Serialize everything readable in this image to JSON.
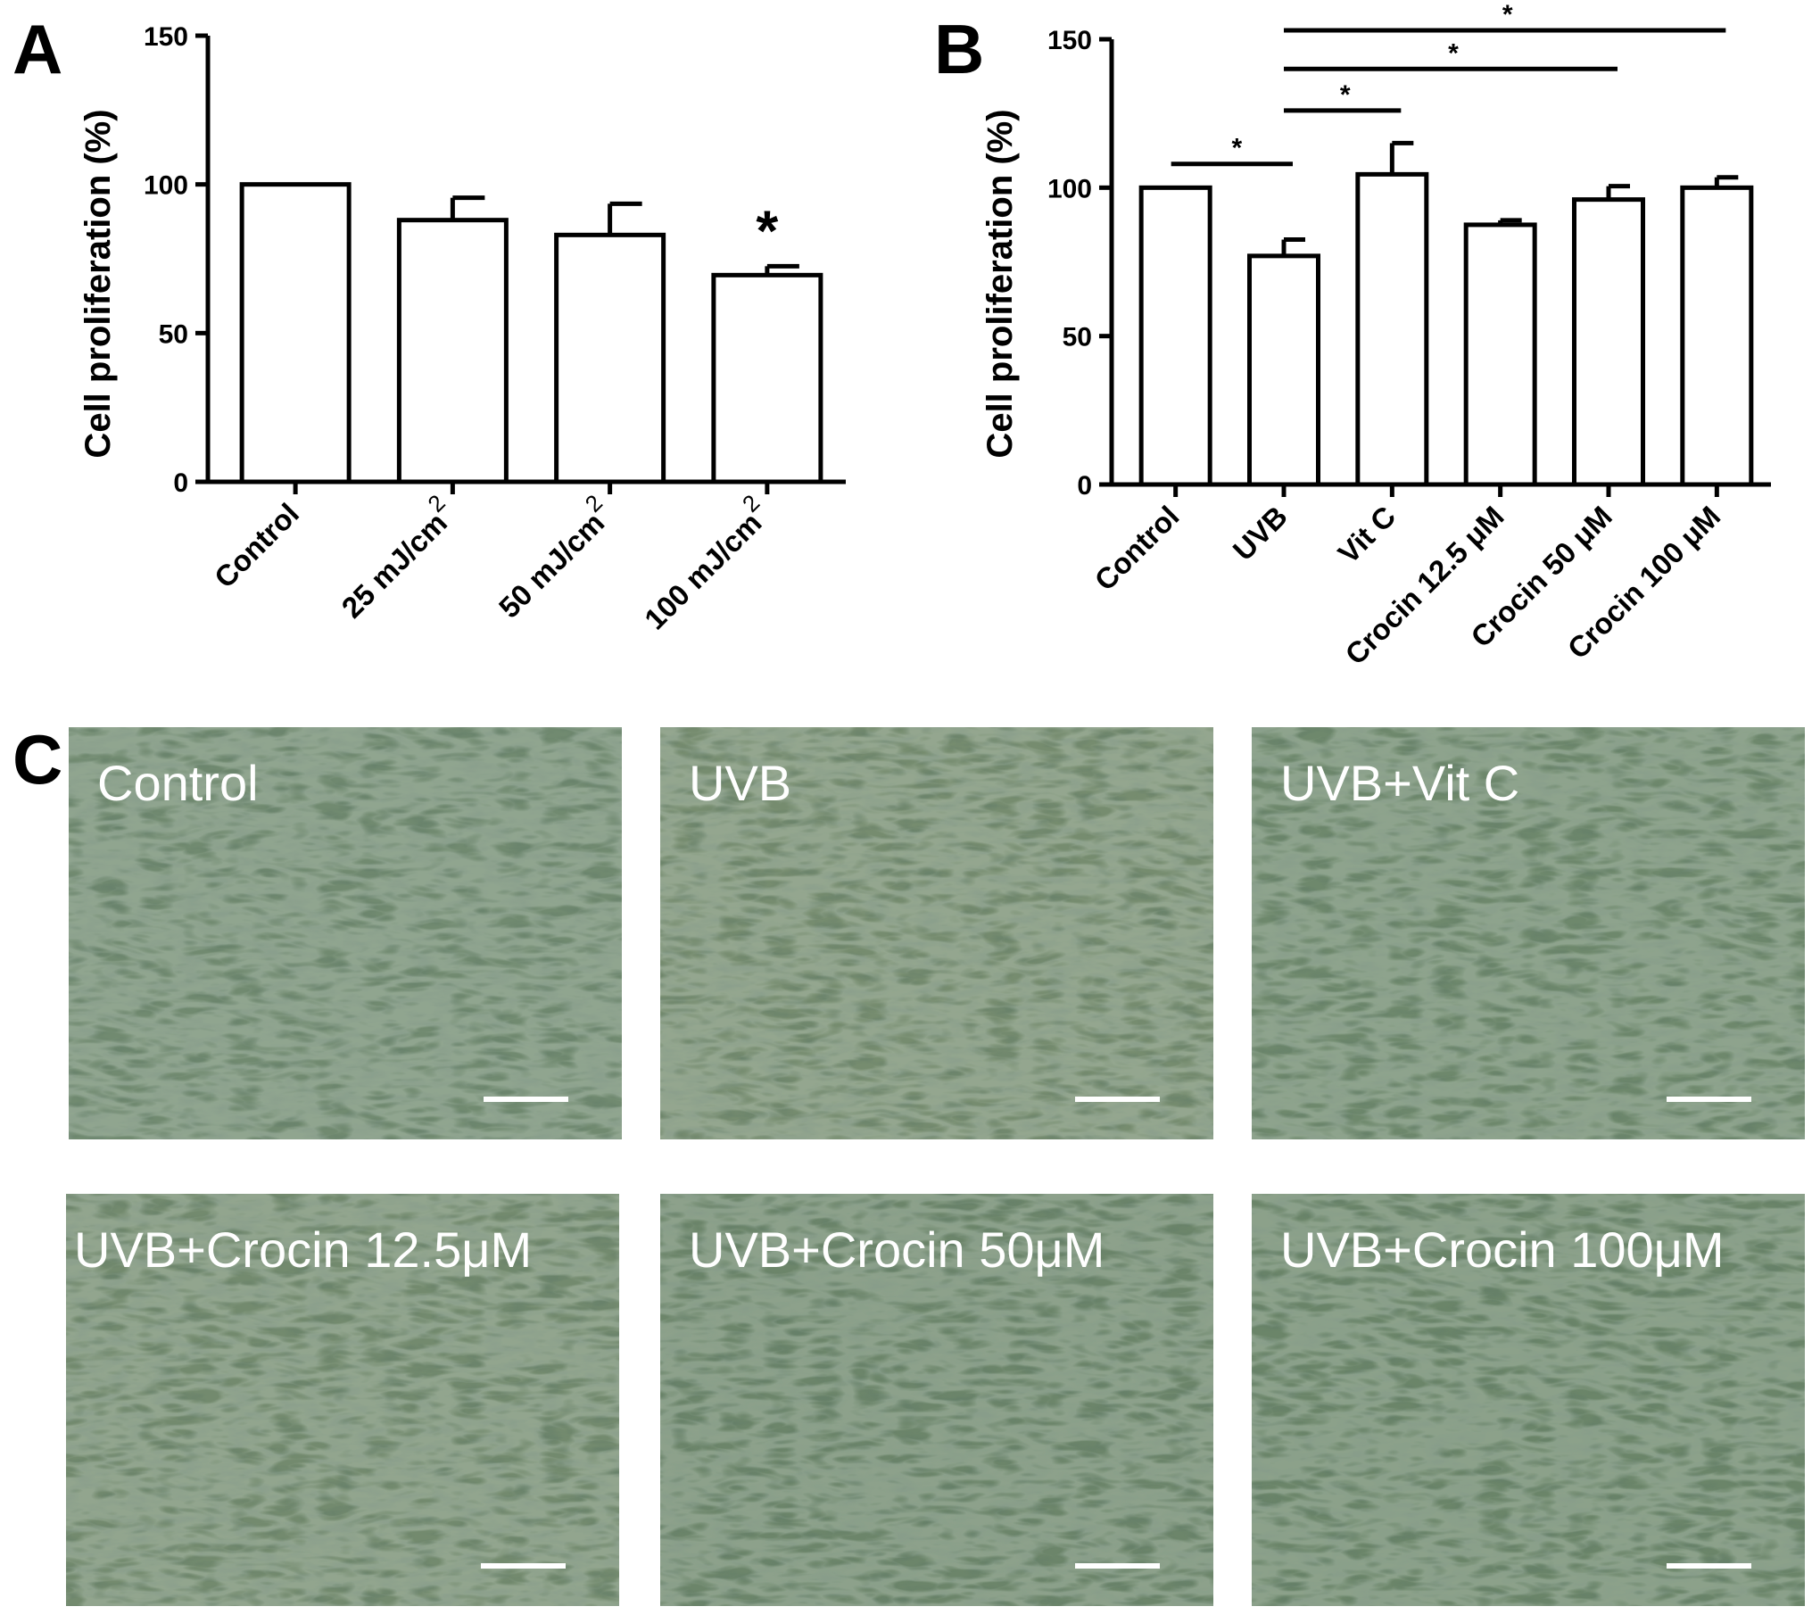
{
  "panels": {
    "A": {
      "letter": "A"
    },
    "B": {
      "letter": "B"
    },
    "C": {
      "letter": "C"
    }
  },
  "chart_data": [
    {
      "id": "A",
      "type": "bar",
      "ylabel": "Cell proliferation (%)",
      "xlabel": "",
      "ylim": [
        0,
        150
      ],
      "yticks": [
        0,
        50,
        100,
        150
      ],
      "categories": [
        "Control",
        "25 mJ/cm",
        "50 mJ/cm",
        "100 mJ/cm"
      ],
      "category_superscripts": [
        "",
        "2",
        "2",
        "2"
      ],
      "values": [
        100,
        88,
        83,
        69.5
      ],
      "errors": [
        0,
        7.5,
        10.5,
        3
      ],
      "significance_markers": [
        {
          "category_index": 3,
          "label": "*"
        }
      ],
      "grid": false,
      "legend": "none"
    },
    {
      "id": "B",
      "type": "bar",
      "ylabel": "Cell proliferation (%)",
      "xlabel": "",
      "ylim": [
        0,
        150
      ],
      "yticks": [
        0,
        50,
        100,
        150
      ],
      "categories": [
        "Control",
        "UVB",
        "Vit C",
        "Crocin 12.5 μM",
        "Crocin 50 μM",
        "Crocin 100 μM"
      ],
      "values": [
        100,
        77,
        104.5,
        87.5,
        96,
        100
      ],
      "errors": [
        0,
        5.5,
        10.5,
        1.5,
        4.5,
        3.5
      ],
      "significance_brackets": [
        {
          "from": 0,
          "to": 1,
          "y": 108,
          "label": "*"
        },
        {
          "from": 1,
          "to": 2,
          "y": 126,
          "label": "*"
        },
        {
          "from": 1,
          "to": 4,
          "y": 140,
          "label": "*"
        },
        {
          "from": 1,
          "to": 5,
          "y": 153,
          "label": "*"
        }
      ],
      "grid": false,
      "legend": "none"
    }
  ],
  "micrographs": [
    {
      "label": "Control",
      "tone": "#718a70"
    },
    {
      "label": "UVB",
      "tone": "#768c6f"
    },
    {
      "label": "UVB+Vit C",
      "tone": "#6e886c"
    },
    {
      "label": "UVB+Crocin 12.5μM",
      "tone": "#738a6e"
    },
    {
      "label": "UVB+Crocin 50μM",
      "tone": "#6c856a"
    },
    {
      "label": "UVB+Crocin 100μM",
      "tone": "#6b8569"
    }
  ]
}
